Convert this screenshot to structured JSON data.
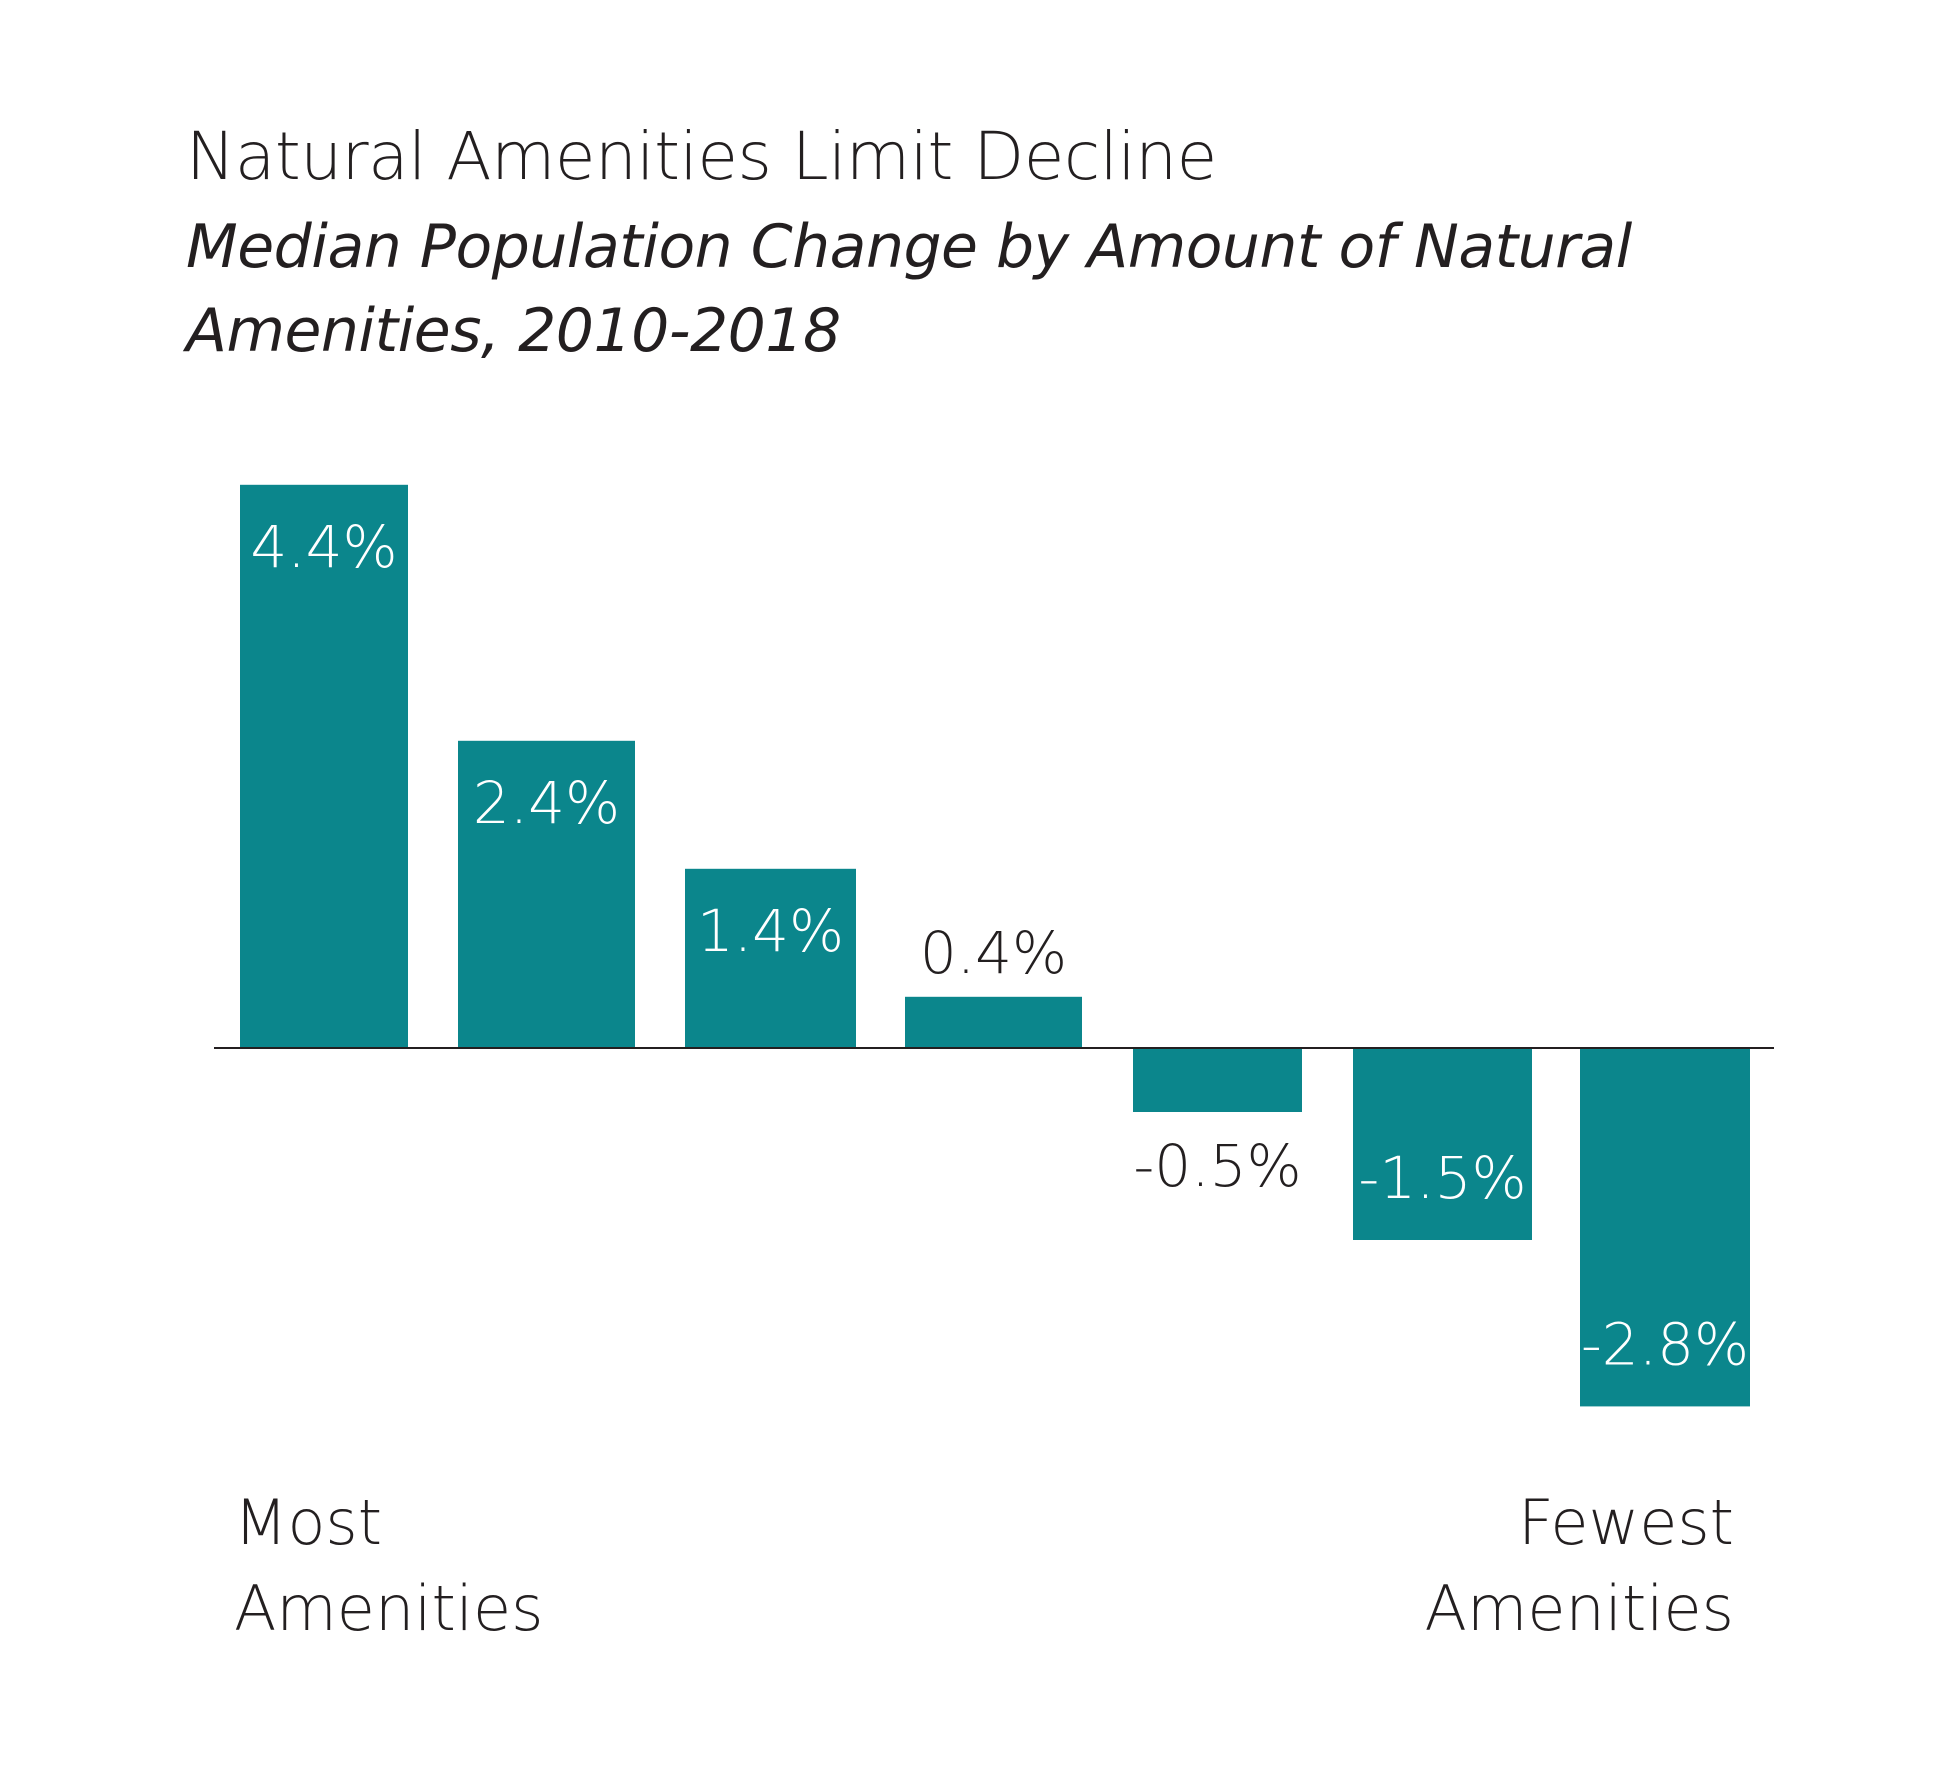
{
  "chart_data": {
    "type": "bar",
    "title": "Natural Amenities Limit Decline",
    "subtitle": "Median Population Change by Amount of Natural Amenities, 2010-2018",
    "categories": [
      "",
      "",
      "",
      "",
      "",
      "",
      ""
    ],
    "values": [
      4.4,
      2.4,
      1.4,
      0.4,
      -0.5,
      -1.5,
      -2.8
    ],
    "data_labels": [
      "4.4%",
      "2.4%",
      "1.4%",
      "0.4%",
      "-0.5%",
      "-1.5%",
      "-2.8%"
    ],
    "ylim": [
      -2.8,
      4.4
    ],
    "grid": false,
    "legend": "none",
    "bar_color": "#0b868c",
    "x_axis_end_labels": {
      "left": [
        "Most",
        "Amenities"
      ],
      "right": [
        "Fewest",
        "Amenities"
      ]
    }
  }
}
